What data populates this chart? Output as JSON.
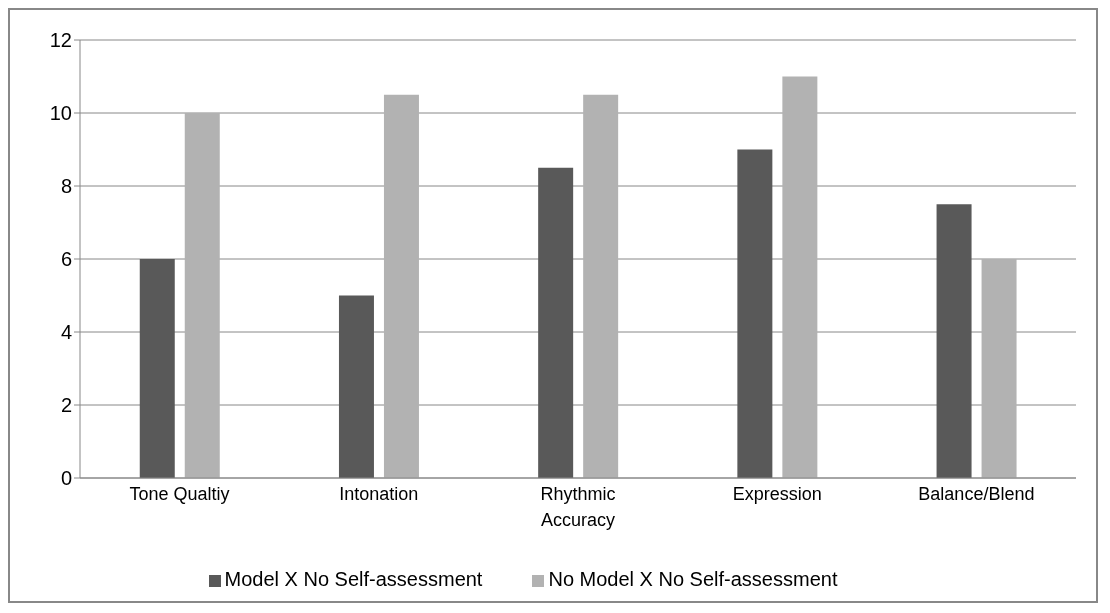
{
  "chart_data": {
    "type": "bar",
    "categories": [
      "Tone Qualtiy",
      "Intonation",
      "Rhythmic Accuracy",
      "Expression",
      "Balance/Blend"
    ],
    "series": [
      {
        "name": "Model X No Self-assessment",
        "color": "#595959",
        "values": [
          6,
          5,
          8.5,
          9,
          7.5
        ]
      },
      {
        "name": "No Model X No Self-assessment",
        "color": "#b2b2b2",
        "values": [
          10,
          10.5,
          10.5,
          11,
          6
        ]
      }
    ],
    "ylim": [
      0,
      12
    ],
    "yticks": [
      0,
      2,
      4,
      6,
      8,
      10,
      12
    ],
    "grid": "y",
    "legend": "bottom"
  }
}
